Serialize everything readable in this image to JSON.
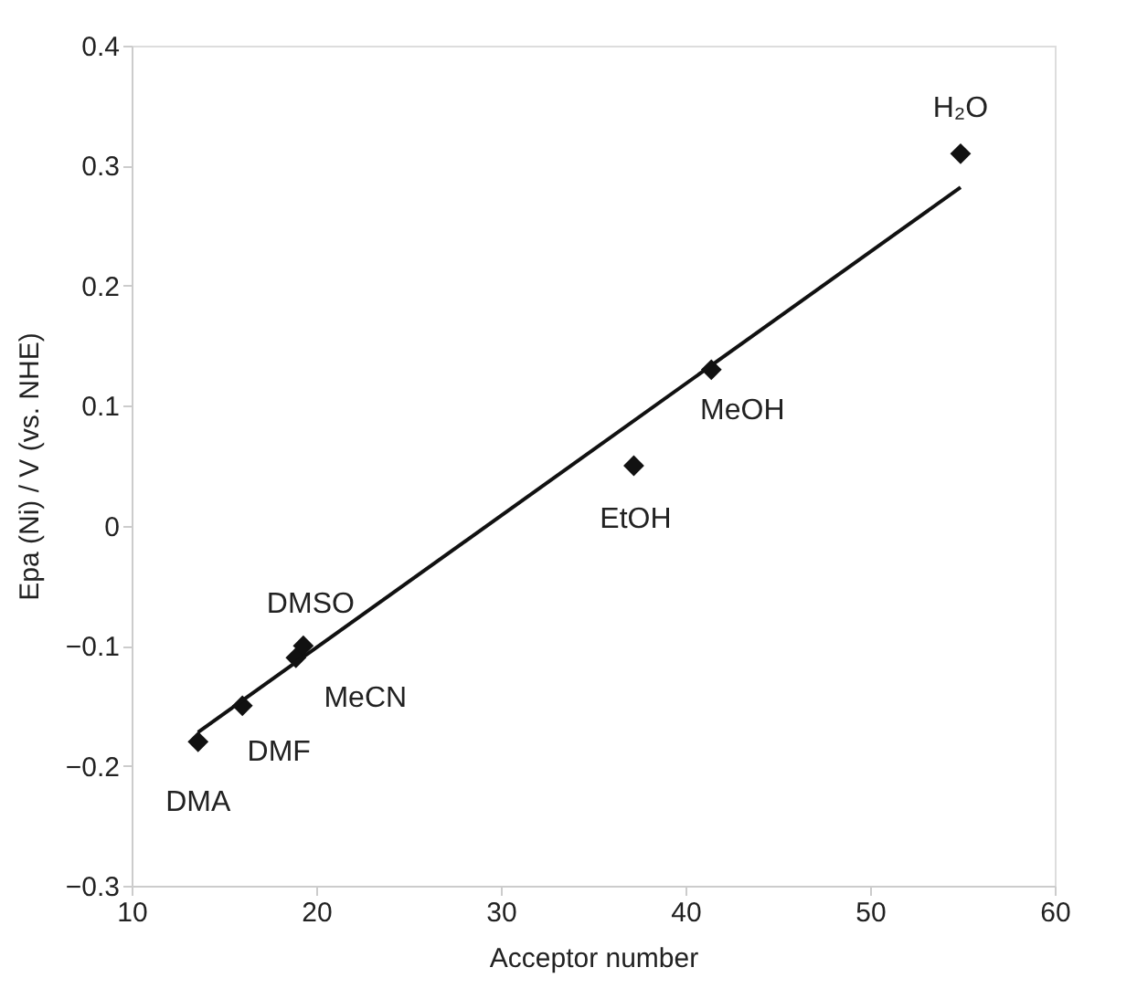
{
  "chart_data": {
    "type": "scatter",
    "xlabel": "Acceptor number",
    "ylabel": "Epa (Ni) / V (vs. NHE)",
    "xlim": [
      10,
      60
    ],
    "xticks": [
      10,
      20,
      30,
      40,
      50,
      60
    ],
    "ylim": [
      -0.3,
      0.4
    ],
    "yticks": [
      -0.3,
      -0.2,
      -0.1,
      0,
      0.1,
      0.2,
      0.3,
      0.4
    ],
    "grid": false,
    "marker": "diamond",
    "series": [
      {
        "type": "scatter",
        "color": "#111111",
        "x": [
          13.6,
          16.0,
          18.9,
          19.3,
          37.2,
          41.4,
          54.9
        ],
        "values": [
          -0.18,
          -0.15,
          -0.11,
          -0.1,
          0.05,
          0.13,
          0.31
        ]
      },
      {
        "type": "line",
        "color": "#111111",
        "marker": "none",
        "line_style": "solid",
        "x": [
          13.6,
          54.9
        ],
        "values": [
          -0.172,
          0.282
        ]
      }
    ],
    "annotations": [
      {
        "text": "DMA",
        "x": 13.6,
        "y": -0.18
      },
      {
        "text": "DMF",
        "x": 16.0,
        "y": -0.15
      },
      {
        "text": "MeCN",
        "x": 18.9,
        "y": -0.11
      },
      {
        "text": "DMSO",
        "x": 19.3,
        "y": -0.1
      },
      {
        "text": "EtOH",
        "x": 37.2,
        "y": 0.05
      },
      {
        "text": "MeOH",
        "x": 41.4,
        "y": 0.13
      },
      {
        "text": "H₂O",
        "x": 54.9,
        "y": 0.31
      }
    ]
  }
}
